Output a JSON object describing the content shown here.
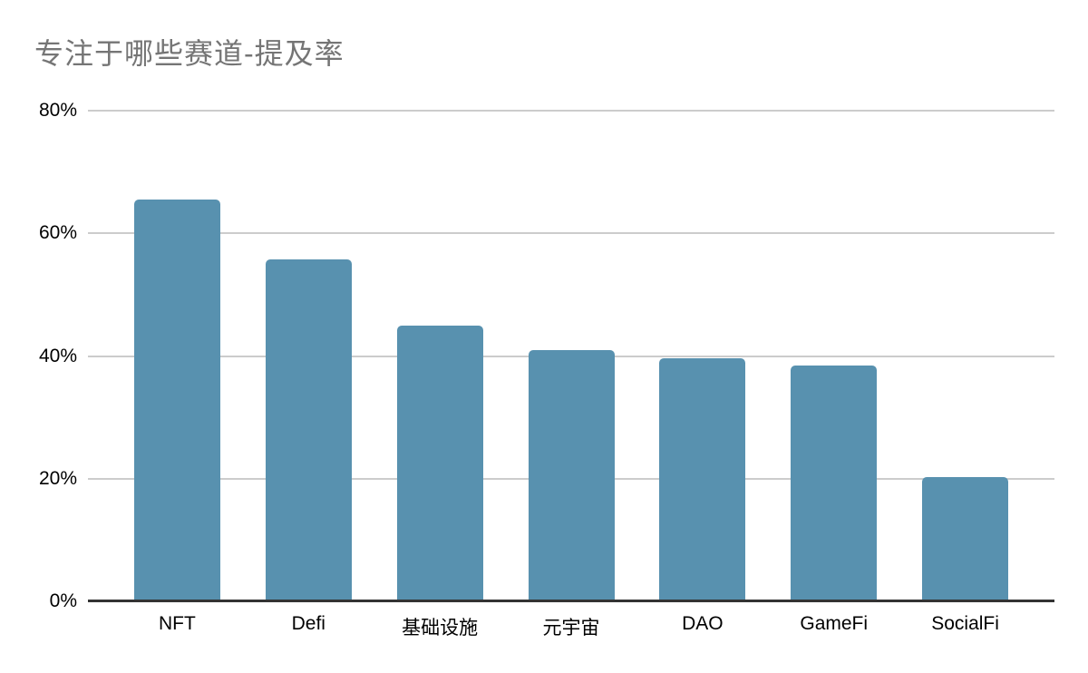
{
  "title": "专注于哪些赛道-提及率",
  "colors": {
    "bar": "#5891af",
    "title_text": "#757575",
    "gridline": "#cccccc",
    "axis_line": "#333333",
    "tick_text": "#000000",
    "background": "#ffffff"
  },
  "chart_data": {
    "type": "bar",
    "title": "专注于哪些赛道-提及率",
    "categories": [
      "NFT",
      "Defi",
      "基础设施",
      "元宇宙",
      "DAO",
      "GameFi",
      "SocialFi"
    ],
    "values": [
      65.5,
      55.8,
      45.0,
      40.9,
      39.6,
      38.5,
      20.3
    ],
    "xlabel": "",
    "ylabel": "",
    "ylim": [
      0,
      80
    ],
    "yticks": [
      {
        "value": 80,
        "label": "80%"
      },
      {
        "value": 60,
        "label": "60%"
      },
      {
        "value": 40,
        "label": "40%"
      },
      {
        "value": 20,
        "label": "20%"
      },
      {
        "value": 0,
        "label": "0%"
      }
    ],
    "grid": true,
    "legend_position": "none"
  }
}
